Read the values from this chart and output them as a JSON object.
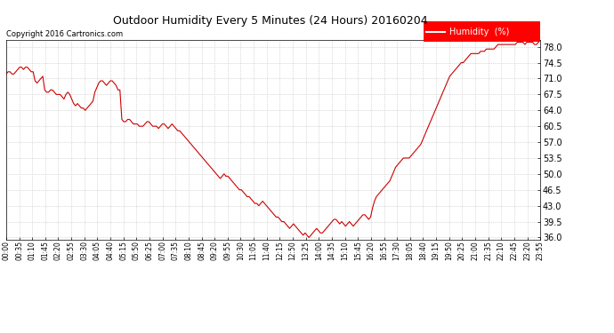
{
  "title": "Outdoor Humidity Every 5 Minutes (24 Hours) 20160204",
  "copyright_text": "Copyright 2016 Cartronics.com",
  "legend_label": "Humidity  (%)",
  "line_color": "#cc0000",
  "background_color": "#ffffff",
  "grid_color": "#bbbbbb",
  "ylim": [
    35.5,
    79.5
  ],
  "yticks": [
    36.0,
    39.5,
    43.0,
    46.5,
    50.0,
    53.5,
    57.0,
    60.5,
    64.0,
    67.5,
    71.0,
    74.5,
    78.0
  ],
  "humidity_data": [
    72.0,
    72.5,
    72.5,
    72.0,
    72.0,
    72.5,
    73.0,
    73.5,
    73.5,
    73.0,
    73.5,
    73.5,
    73.0,
    72.5,
    72.5,
    70.5,
    70.0,
    70.5,
    71.0,
    71.5,
    68.5,
    68.0,
    68.0,
    68.5,
    68.5,
    68.0,
    67.5,
    67.5,
    67.5,
    67.0,
    66.5,
    67.5,
    68.0,
    67.5,
    66.5,
    65.5,
    65.0,
    65.5,
    65.0,
    64.5,
    64.5,
    64.0,
    64.5,
    65.0,
    65.5,
    66.0,
    68.0,
    69.0,
    70.0,
    70.5,
    70.5,
    70.0,
    69.5,
    70.0,
    70.5,
    70.5,
    70.0,
    69.5,
    68.5,
    68.5,
    62.0,
    61.5,
    61.5,
    62.0,
    62.0,
    61.5,
    61.0,
    61.0,
    61.0,
    60.5,
    60.5,
    60.5,
    61.0,
    61.5,
    61.5,
    61.0,
    60.5,
    60.5,
    60.5,
    60.0,
    60.5,
    61.0,
    61.0,
    60.5,
    60.0,
    60.5,
    61.0,
    60.5,
    60.0,
    59.5,
    59.5,
    59.0,
    58.5,
    58.0,
    57.5,
    57.0,
    56.5,
    56.0,
    55.5,
    55.0,
    54.5,
    54.0,
    53.5,
    53.0,
    52.5,
    52.0,
    51.5,
    51.0,
    50.5,
    50.0,
    49.5,
    49.0,
    49.5,
    50.0,
    49.5,
    49.5,
    49.0,
    48.5,
    48.0,
    47.5,
    47.0,
    46.5,
    46.5,
    46.0,
    45.5,
    45.0,
    45.0,
    44.5,
    44.0,
    43.5,
    43.5,
    43.0,
    43.5,
    44.0,
    43.5,
    43.0,
    42.5,
    42.0,
    41.5,
    41.0,
    40.5,
    40.5,
    40.0,
    39.5,
    39.5,
    39.0,
    38.5,
    38.0,
    38.5,
    39.0,
    38.5,
    38.0,
    37.5,
    37.0,
    36.5,
    37.0,
    36.5,
    36.0,
    36.5,
    37.0,
    37.5,
    38.0,
    37.5,
    37.0,
    37.0,
    37.5,
    38.0,
    38.5,
    39.0,
    39.5,
    40.0,
    40.0,
    39.5,
    39.0,
    39.5,
    39.0,
    38.5,
    39.0,
    39.5,
    39.0,
    38.5,
    39.0,
    39.5,
    40.0,
    40.5,
    41.0,
    41.0,
    40.5,
    40.0,
    40.5,
    42.5,
    44.0,
    45.0,
    45.5,
    46.0,
    46.5,
    47.0,
    47.5,
    48.0,
    48.5,
    49.5,
    50.5,
    51.5,
    52.0,
    52.5,
    53.0,
    53.5,
    53.5,
    53.5,
    53.5,
    54.0,
    54.5,
    55.0,
    55.5,
    56.0,
    56.5,
    57.5,
    58.5,
    59.5,
    60.5,
    61.5,
    62.5,
    63.5,
    64.5,
    65.5,
    66.5,
    67.5,
    68.5,
    69.5,
    70.5,
    71.5,
    72.0,
    72.5,
    73.0,
    73.5,
    74.0,
    74.5,
    74.5,
    75.0,
    75.5,
    76.0,
    76.5,
    76.5,
    76.5,
    76.5,
    76.5,
    77.0,
    77.0,
    77.0,
    77.5,
    77.5,
    77.5,
    77.5,
    77.5,
    78.0,
    78.5,
    78.5,
    78.5,
    78.5,
    78.5,
    78.5,
    78.5,
    78.5,
    78.5,
    78.5,
    79.0,
    79.0,
    79.0,
    79.0,
    78.5,
    79.0,
    79.0,
    79.0,
    79.0,
    78.5,
    78.5,
    79.0,
    79.5
  ],
  "xtick_labels": [
    "00:00",
    "00:35",
    "01:10",
    "01:45",
    "02:20",
    "02:55",
    "03:30",
    "04:05",
    "04:40",
    "05:15",
    "05:50",
    "06:25",
    "07:00",
    "07:35",
    "08:10",
    "08:45",
    "09:20",
    "09:55",
    "10:30",
    "11:05",
    "11:40",
    "12:15",
    "12:50",
    "13:25",
    "14:00",
    "14:35",
    "15:10",
    "15:45",
    "16:20",
    "16:55",
    "17:30",
    "18:05",
    "18:40",
    "19:15",
    "19:50",
    "20:25",
    "21:00",
    "21:35",
    "22:10",
    "22:45",
    "23:20",
    "23:55"
  ]
}
